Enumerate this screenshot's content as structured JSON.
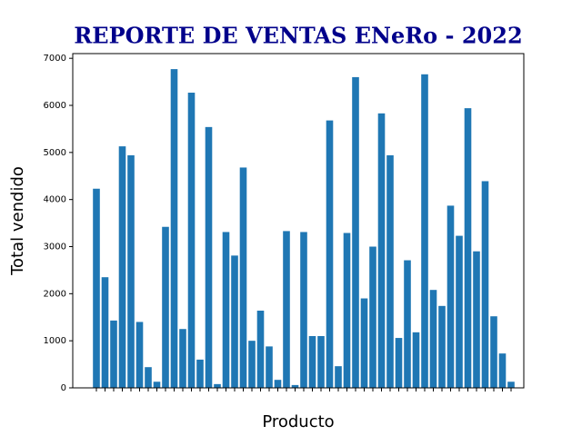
{
  "chart_data": {
    "type": "bar",
    "title": "REPORTE DE VENTAS ENeRo - 2022",
    "x_label": "Producto",
    "y_label": "Total vendido",
    "categories": [
      null,
      null,
      null,
      null,
      null,
      null,
      null,
      null,
      null,
      null,
      null,
      null,
      null,
      null,
      null,
      null,
      null,
      null,
      null,
      null,
      null,
      null,
      null,
      null,
      null,
      null,
      null,
      null,
      null,
      null,
      null,
      null,
      null,
      null,
      null,
      null,
      null,
      null,
      null,
      null,
      null,
      null,
      null,
      null,
      null,
      null,
      null,
      null,
      null
    ],
    "values": [
      4230,
      2350,
      1430,
      5130,
      4940,
      1400,
      440,
      130,
      3420,
      6770,
      1250,
      6270,
      600,
      5540,
      80,
      3310,
      2810,
      4680,
      1000,
      1640,
      880,
      170,
      3330,
      60,
      3310,
      1100,
      1100,
      5680,
      460,
      3290,
      6600,
      1900,
      3000,
      5830,
      4940,
      1060,
      2710,
      1180,
      6660,
      2080,
      1740,
      3870,
      3230,
      5940,
      2900,
      4390,
      1520,
      730,
      130
    ],
    "color": "#1f77b4",
    "ylim": [
      0,
      7100
    ],
    "yticks": [
      0,
      1000,
      2000,
      3000,
      4000,
      5000,
      6000,
      7000
    ],
    "grid": false
  }
}
